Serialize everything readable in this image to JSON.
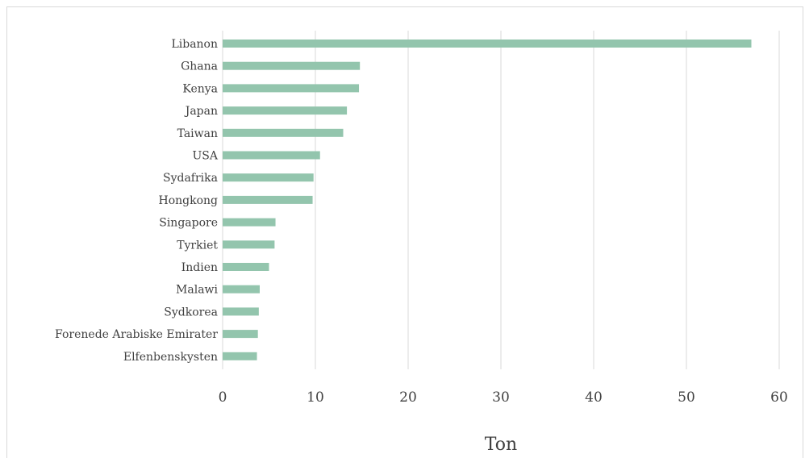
{
  "chart_data": {
    "type": "bar",
    "orientation": "horizontal",
    "categories": [
      "Libanon",
      "Ghana",
      "Kenya",
      "Japan",
      "Taiwan",
      "USA",
      "Sydafrika",
      "Hongkong",
      "Singapore",
      "Tyrkiet",
      "Indien",
      "Malawi",
      "Sydkorea",
      "Forenede Arabiske Emirater",
      "Elfenbenskysten"
    ],
    "values": [
      57,
      14.8,
      14.7,
      13.4,
      13.0,
      10.5,
      9.8,
      9.7,
      5.7,
      5.6,
      5.0,
      4.0,
      3.9,
      3.8,
      3.7
    ],
    "xlabel": "Ton",
    "ylabel": "",
    "xlim": [
      0,
      60
    ],
    "xticks": [
      "0",
      "10",
      "20",
      "30",
      "40",
      "50",
      "60"
    ],
    "grid": true,
    "legend": "none",
    "bar_color": "#93c5ad",
    "grid_color": "#d9d9d9"
  }
}
